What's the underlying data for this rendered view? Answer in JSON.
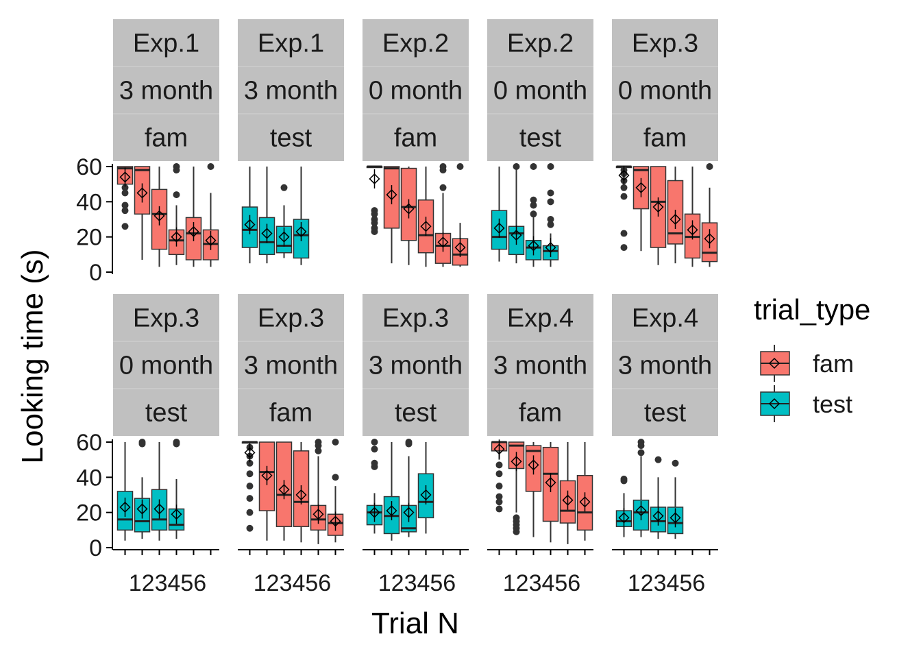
{
  "chart_data": {
    "type": "box",
    "xlabel": "Trial N",
    "ylabel": "Looking time (s)",
    "ylim": [
      0,
      60
    ],
    "yticks": [
      0,
      20,
      40,
      60
    ],
    "xticks": [
      1,
      2,
      3,
      4,
      5,
      6
    ],
    "legend": {
      "title": "trial_type",
      "placement": "right",
      "entries": [
        {
          "name": "fam",
          "color": "#F8766D"
        },
        {
          "name": "test",
          "color": "#00BFC4"
        }
      ]
    },
    "panels": [
      {
        "exp": "Exp.1",
        "age": "3 month",
        "type": "fam",
        "boxes": [
          {
            "x": 1,
            "q1": 50,
            "med": 59,
            "q3": 60,
            "lo": 50,
            "hi": 60,
            "mean": 54,
            "outliers": [
              48,
              45,
              38,
              35,
              26
            ]
          },
          {
            "x": 2,
            "q1": 33,
            "med": 58,
            "q3": 60,
            "lo": 7,
            "hi": 60,
            "mean": 45,
            "outliers": []
          },
          {
            "x": 3,
            "q1": 13,
            "med": 33,
            "q3": 47,
            "lo": 3,
            "hi": 60,
            "mean": 32,
            "outliers": []
          },
          {
            "x": 4,
            "q1": 10,
            "med": 18,
            "q3": 24,
            "lo": 4,
            "hi": 38,
            "mean": 20,
            "outliers": [
              60,
              58,
              44
            ]
          },
          {
            "x": 5,
            "q1": 7,
            "med": 22,
            "q3": 31,
            "lo": 3,
            "hi": 60,
            "mean": 23,
            "outliers": []
          },
          {
            "x": 6,
            "q1": 7,
            "med": 16,
            "q3": 24,
            "lo": 3,
            "hi": 45,
            "mean": 18,
            "outliers": [
              60
            ]
          }
        ]
      },
      {
        "exp": "Exp.1",
        "age": "3 month",
        "type": "test",
        "boxes": [
          {
            "x": 1,
            "q1": 14,
            "med": 24,
            "q3": 37,
            "lo": 5,
            "hi": 60,
            "mean": 27,
            "outliers": []
          },
          {
            "x": 2,
            "q1": 10,
            "med": 17,
            "q3": 31,
            "lo": 5,
            "hi": 60,
            "mean": 22,
            "outliers": []
          },
          {
            "x": 3,
            "q1": 11,
            "med": 15,
            "q3": 26,
            "lo": 8,
            "hi": 38,
            "mean": 20,
            "outliers": [
              48
            ]
          },
          {
            "x": 4,
            "q1": 8,
            "med": 21,
            "q3": 30,
            "lo": 4,
            "hi": 60,
            "mean": 23,
            "outliers": []
          }
        ]
      },
      {
        "exp": "Exp.2",
        "age": "0 month",
        "type": "fam",
        "boxes": [
          {
            "x": 1,
            "q1": 60,
            "med": 60,
            "q3": 60,
            "lo": 60,
            "hi": 60,
            "mean": 53,
            "outliers": [
              35,
              33,
              30,
              28,
              25,
              23
            ]
          },
          {
            "x": 2,
            "q1": 25,
            "med": 59,
            "q3": 60,
            "lo": 5,
            "hi": 60,
            "mean": 44,
            "outliers": []
          },
          {
            "x": 3,
            "q1": 18,
            "med": 37,
            "q3": 59,
            "lo": 4,
            "hi": 60,
            "mean": 36,
            "outliers": []
          },
          {
            "x": 4,
            "q1": 11,
            "med": 21,
            "q3": 41,
            "lo": 3,
            "hi": 60,
            "mean": 26,
            "outliers": []
          },
          {
            "x": 5,
            "q1": 5,
            "med": 15,
            "q3": 22,
            "lo": 3,
            "hi": 45,
            "mean": 17,
            "outliers": [
              60,
              58,
              48
            ]
          },
          {
            "x": 6,
            "q1": 4,
            "med": 10,
            "q3": 19,
            "lo": 3,
            "hi": 28,
            "mean": 14,
            "outliers": [
              60
            ]
          }
        ]
      },
      {
        "exp": "Exp.2",
        "age": "0 month",
        "type": "test",
        "boxes": [
          {
            "x": 1,
            "q1": 13,
            "med": 20,
            "q3": 35,
            "lo": 6,
            "hi": 60,
            "mean": 25,
            "outliers": []
          },
          {
            "x": 2,
            "q1": 10,
            "med": 22,
            "q3": 26,
            "lo": 5,
            "hi": 60,
            "mean": 21,
            "outliers": [
              60
            ]
          },
          {
            "x": 3,
            "q1": 7,
            "med": 14,
            "q3": 18,
            "lo": 3,
            "hi": 35,
            "mean": 15,
            "outliers": [
              60,
              41,
              38,
              33
            ]
          },
          {
            "x": 4,
            "q1": 7,
            "med": 12,
            "q3": 15,
            "lo": 3,
            "hi": 22,
            "mean": 14,
            "outliers": [
              60,
              45,
              40,
              30,
              27
            ]
          }
        ]
      },
      {
        "exp": "Exp.3",
        "age": "0 month",
        "type": "fam",
        "boxes": [
          {
            "x": 1,
            "q1": 60,
            "med": 60,
            "q3": 60,
            "lo": 60,
            "hi": 60,
            "mean": 55,
            "outliers": [
              58,
              56,
              52,
              48,
              43,
              22,
              14
            ]
          },
          {
            "x": 2,
            "q1": 36,
            "med": 58,
            "q3": 60,
            "lo": 12,
            "hi": 60,
            "mean": 48,
            "outliers": []
          },
          {
            "x": 3,
            "q1": 14,
            "med": 40,
            "q3": 60,
            "lo": 4,
            "hi": 60,
            "mean": 37,
            "outliers": []
          },
          {
            "x": 4,
            "q1": 16,
            "med": 22,
            "q3": 52,
            "lo": 5,
            "hi": 60,
            "mean": 30,
            "outliers": []
          },
          {
            "x": 5,
            "q1": 8,
            "med": 20,
            "q3": 33,
            "lo": 3,
            "hi": 60,
            "mean": 24,
            "outliers": []
          },
          {
            "x": 6,
            "q1": 6,
            "med": 11,
            "q3": 28,
            "lo": 3,
            "hi": 48,
            "mean": 19,
            "outliers": [
              60
            ]
          }
        ]
      },
      {
        "exp": "Exp.3",
        "age": "0 month",
        "type": "test",
        "boxes": [
          {
            "x": 1,
            "q1": 10,
            "med": 16,
            "q3": 32,
            "lo": 4,
            "hi": 60,
            "mean": 23,
            "outliers": []
          },
          {
            "x": 2,
            "q1": 9,
            "med": 15,
            "q3": 28,
            "lo": 5,
            "hi": 40,
            "mean": 22,
            "outliers": [
              60,
              59
            ]
          },
          {
            "x": 3,
            "q1": 10,
            "med": 16,
            "q3": 33,
            "lo": 4,
            "hi": 60,
            "mean": 22,
            "outliers": []
          },
          {
            "x": 4,
            "q1": 10,
            "med": 13,
            "q3": 22,
            "lo": 5,
            "hi": 39,
            "mean": 19,
            "outliers": [
              60,
              59
            ]
          }
        ]
      },
      {
        "exp": "Exp.3",
        "age": "3 month",
        "type": "fam",
        "boxes": [
          {
            "x": 1,
            "q1": 60,
            "med": 60,
            "q3": 60,
            "lo": 60,
            "hi": 60,
            "mean": 54,
            "outliers": [
              57,
              52,
              48,
              42,
              35,
              28,
              20,
              11
            ]
          },
          {
            "x": 2,
            "q1": 21,
            "med": 43,
            "q3": 60,
            "lo": 4,
            "hi": 60,
            "mean": 41,
            "outliers": []
          },
          {
            "x": 3,
            "q1": 12,
            "med": 30,
            "q3": 60,
            "lo": 4,
            "hi": 60,
            "mean": 33,
            "outliers": []
          },
          {
            "x": 4,
            "q1": 12,
            "med": 26,
            "q3": 55,
            "lo": 3,
            "hi": 60,
            "mean": 30,
            "outliers": []
          },
          {
            "x": 5,
            "q1": 10,
            "med": 16,
            "q3": 24,
            "lo": 2,
            "hi": 52,
            "mean": 19,
            "outliers": [
              60,
              58,
              55
            ]
          },
          {
            "x": 6,
            "q1": 7,
            "med": 14,
            "q3": 19,
            "lo": 3,
            "hi": 35,
            "mean": 15,
            "outliers": [
              60,
              40
            ]
          }
        ]
      },
      {
        "exp": "Exp.3",
        "age": "3 month",
        "type": "test",
        "boxes": [
          {
            "x": 1,
            "q1": 13,
            "med": 20,
            "q3": 24,
            "lo": 8,
            "hi": 31,
            "mean": 20,
            "outliers": [
              60,
              56,
              48,
              46
            ]
          },
          {
            "x": 2,
            "q1": 8,
            "med": 18,
            "q3": 29,
            "lo": 4,
            "hi": 60,
            "mean": 21,
            "outliers": []
          },
          {
            "x": 3,
            "q1": 9,
            "med": 11,
            "q3": 24,
            "lo": 6,
            "hi": 52,
            "mean": 20,
            "outliers": [
              60,
              59
            ]
          },
          {
            "x": 4,
            "q1": 17,
            "med": 26,
            "q3": 42,
            "lo": 8,
            "hi": 60,
            "mean": 30,
            "outliers": []
          }
        ]
      },
      {
        "exp": "Exp.4",
        "age": "3 month",
        "type": "fam",
        "boxes": [
          {
            "x": 1,
            "q1": 55,
            "med": 60,
            "q3": 60,
            "lo": 50,
            "hi": 60,
            "mean": 56,
            "outliers": [
              47,
              42,
              35,
              29,
              26,
              22
            ]
          },
          {
            "x": 2,
            "q1": 45,
            "med": 58,
            "q3": 60,
            "lo": 20,
            "hi": 60,
            "mean": 49,
            "outliers": [
              17,
              15,
              13,
              11,
              9
            ]
          },
          {
            "x": 3,
            "q1": 32,
            "med": 55,
            "q3": 58,
            "lo": 6,
            "hi": 60,
            "mean": 47,
            "outliers": []
          },
          {
            "x": 4,
            "q1": 15,
            "med": 42,
            "q3": 57,
            "lo": 3,
            "hi": 60,
            "mean": 37,
            "outliers": []
          },
          {
            "x": 5,
            "q1": 14,
            "med": 21,
            "q3": 38,
            "lo": 2,
            "hi": 60,
            "mean": 27,
            "outliers": []
          },
          {
            "x": 6,
            "q1": 10,
            "med": 20,
            "q3": 41,
            "lo": 4,
            "hi": 60,
            "mean": 26,
            "outliers": []
          }
        ]
      },
      {
        "exp": "Exp.4",
        "age": "3 month",
        "type": "test",
        "boxes": [
          {
            "x": 1,
            "q1": 12,
            "med": 15,
            "q3": 21,
            "lo": 6,
            "hi": 31,
            "mean": 17,
            "outliers": [
              39,
              38
            ]
          },
          {
            "x": 2,
            "q1": 10,
            "med": 20,
            "q3": 27,
            "lo": 6,
            "hi": 52,
            "mean": 21,
            "outliers": [
              60,
              58,
              54
            ]
          },
          {
            "x": 3,
            "q1": 9,
            "med": 15,
            "q3": 23,
            "lo": 5,
            "hi": 40,
            "mean": 18,
            "outliers": [
              50
            ]
          },
          {
            "x": 4,
            "q1": 8,
            "med": 14,
            "q3": 23,
            "lo": 5,
            "hi": 40,
            "mean": 17,
            "outliers": [
              48
            ]
          }
        ]
      }
    ]
  }
}
